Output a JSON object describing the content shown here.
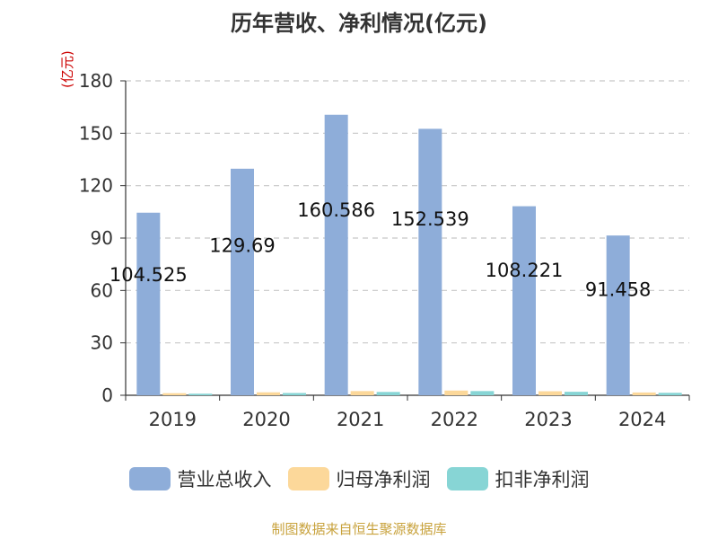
{
  "chart_data": {
    "type": "bar",
    "title": "历年营收、净利情况(亿元)",
    "ylabel": "(亿元)",
    "ylim": [
      0,
      180
    ],
    "yticks": [
      0,
      30,
      60,
      90,
      120,
      150,
      180
    ],
    "grid": true,
    "legend_position": "bottom",
    "categories": [
      "2019",
      "2020",
      "2021",
      "2022",
      "2023",
      "2024"
    ],
    "series": [
      {
        "name": "营业总收入",
        "color": "#8eadd9",
        "values": [
          104.525,
          129.69,
          160.586,
          152.539,
          108.221,
          91.458
        ],
        "labels": [
          "104.525",
          "129.69",
          "160.586",
          "152.539",
          "108.221",
          "91.458"
        ]
      },
      {
        "name": "归母净利润",
        "color": "#fcd89a",
        "values": [
          1.2,
          1.7,
          2.4,
          2.7,
          2.3,
          1.6
        ]
      },
      {
        "name": "扣非净利润",
        "color": "#87d5d5",
        "values": [
          0.9,
          1.3,
          1.9,
          2.4,
          2.0,
          1.4
        ]
      }
    ]
  },
  "source_note": "制图数据来自恒生聚源数据库"
}
